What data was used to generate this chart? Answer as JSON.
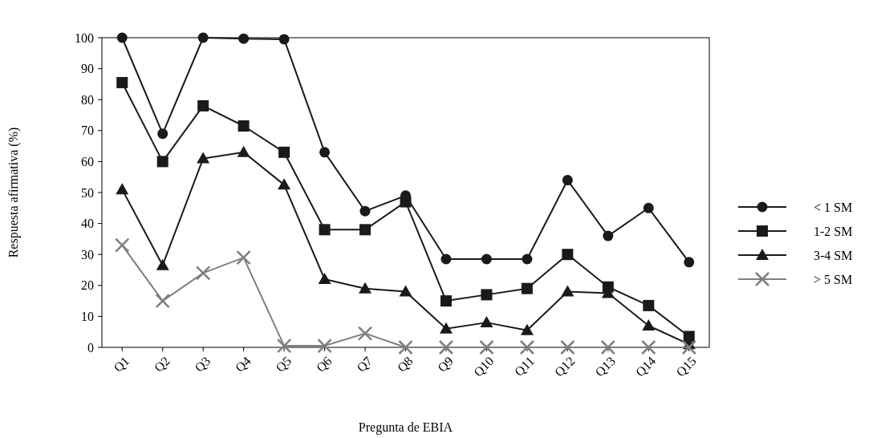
{
  "chart_data": {
    "type": "line",
    "xlabel": "Pregunta de EBIA",
    "ylabel": "Respuesta afirmativa (%)",
    "categories": [
      "Q1",
      "Q2",
      "Q3",
      "Q4",
      "Q5",
      "Q6",
      "Q7",
      "Q8",
      "Q9",
      "Q10",
      "Q11",
      "Q12",
      "Q13",
      "Q14",
      "Q15"
    ],
    "ylim": [
      0,
      100
    ],
    "yticks": [
      0,
      10,
      20,
      30,
      40,
      50,
      60,
      70,
      80,
      90,
      100
    ],
    "grid": false,
    "legend": "right",
    "series": [
      {
        "name": "< 1 SM",
        "color": "#1a1a1a",
        "marker": "circle",
        "values": [
          100,
          69,
          100,
          99.7,
          99.5,
          63,
          44,
          49,
          28.5,
          28.5,
          28.5,
          54,
          36,
          45,
          27.5
        ]
      },
      {
        "name": "1-2 SM",
        "color": "#1a1a1a",
        "marker": "square",
        "values": [
          85.5,
          60,
          78,
          71.5,
          63,
          38,
          38,
          47,
          15,
          17,
          19,
          30,
          19.5,
          13.5,
          3.5
        ]
      },
      {
        "name": "3-4 SM",
        "color": "#1a1a1a",
        "marker": "triangle",
        "values": [
          51,
          26.5,
          61,
          63,
          52.5,
          22,
          19,
          18,
          6,
          8,
          5.5,
          18,
          17.5,
          7,
          1
        ]
      },
      {
        "name": "> 5 SM",
        "color": "#7f7f7f",
        "marker": "cross",
        "values": [
          33,
          15,
          24,
          29,
          0.5,
          0.5,
          4.5,
          0,
          0,
          0,
          0,
          0,
          0,
          0,
          0
        ]
      }
    ]
  }
}
